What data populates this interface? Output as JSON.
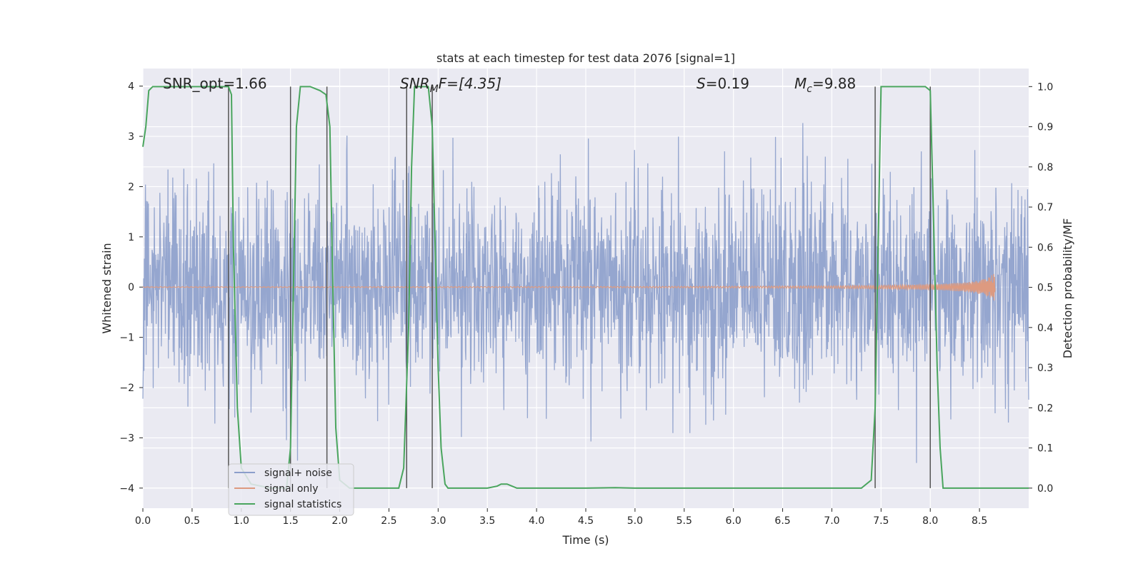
{
  "chart_data": {
    "type": "line",
    "title": "stats at each timestep for test data 2076 [signal=1]",
    "xlabel": "Time (s)",
    "ylabel": "Whitened strain",
    "y2label": "Detection probability/MF",
    "xlim": [
      0,
      9
    ],
    "ylim": [
      -4.4,
      4.35
    ],
    "y2lim": [
      -0.05,
      1.045
    ],
    "x_ticks": [
      0.0,
      0.5,
      1.0,
      1.5,
      2.0,
      2.5,
      3.0,
      3.5,
      4.0,
      4.5,
      5.0,
      5.5,
      6.0,
      6.5,
      7.0,
      7.5,
      8.0,
      8.5
    ],
    "x_tick_labels": [
      "0.0",
      "0.5",
      "1.0",
      "1.5",
      "2.0",
      "2.5",
      "3.0",
      "3.5",
      "4.0",
      "4.5",
      "5.0",
      "5.5",
      "6.0",
      "6.5",
      "7.0",
      "7.5",
      "8.0",
      "8.5"
    ],
    "y_ticks": [
      -4,
      -3,
      -2,
      -1,
      0,
      1,
      2,
      3,
      4
    ],
    "y_tick_labels": [
      "−4",
      "−3",
      "−2",
      "−1",
      "0",
      "1",
      "2",
      "3",
      "4"
    ],
    "y2_ticks": [
      0.0,
      0.1,
      0.2,
      0.3,
      0.4,
      0.5,
      0.6,
      0.7,
      0.8,
      0.9,
      1.0
    ],
    "y2_tick_labels": [
      "0.0",
      "0.1",
      "0.2",
      "0.3",
      "0.4",
      "0.5",
      "0.6",
      "0.7",
      "0.8",
      "0.9",
      "1.0"
    ],
    "grid": true,
    "legend_placement": "lower-left",
    "annotations": {
      "snr_opt": "SNR_opt=1.66",
      "snr_mf_main": "SNR",
      "snr_mf_sub": "M",
      "snr_mf_rest": "F=[4.35]",
      "s_main": "S",
      "s_rest": "=0.19",
      "mc_main": "M",
      "mc_sub": "c",
      "mc_rest": "=9.88"
    },
    "series": [
      {
        "name": "signal+ noise",
        "color": "#8c9ecb",
        "axis": "left",
        "t_range": [
          0,
          9
        ],
        "envelope_sigma": 1.0,
        "peak_abs": 4.0
      },
      {
        "name": "signal only",
        "color": "#dd9a80",
        "axis": "left",
        "t_range": [
          0,
          8.66
        ],
        "amplitude_at_end": 0.3
      },
      {
        "name": "signal statistics",
        "color": "#4aa55e",
        "axis": "right",
        "x": [
          0.0,
          0.03,
          0.06,
          0.1,
          0.2,
          0.4,
          0.6,
          0.8,
          0.87,
          0.9,
          0.92,
          0.96,
          1.0,
          1.1,
          1.3,
          1.46,
          1.5,
          1.53,
          1.56,
          1.6,
          1.7,
          1.8,
          1.86,
          1.9,
          1.93,
          1.96,
          2.0,
          2.1,
          2.3,
          2.5,
          2.6,
          2.65,
          2.7,
          2.73,
          2.76,
          2.8,
          2.9,
          2.94,
          2.97,
          3.0,
          3.03,
          3.07,
          3.1,
          3.2,
          3.5,
          3.6,
          3.64,
          3.7,
          3.75,
          3.8,
          4.0,
          4.5,
          4.8,
          5.0,
          5.5,
          6.0,
          6.5,
          7.0,
          7.3,
          7.4,
          7.44,
          7.47,
          7.5,
          7.6,
          7.8,
          7.95,
          8.0,
          8.03,
          8.07,
          8.1,
          8.13,
          8.2,
          8.5,
          9.0
        ],
        "values": [
          0.85,
          0.9,
          0.99,
          1.0,
          1.0,
          1.0,
          1.0,
          1.0,
          1.0,
          0.98,
          0.6,
          0.2,
          0.05,
          0.01,
          0.0,
          0.0,
          0.1,
          0.5,
          0.9,
          1.0,
          1.0,
          0.99,
          0.98,
          0.9,
          0.5,
          0.15,
          0.02,
          0.0,
          0.0,
          0.0,
          0.0,
          0.05,
          0.4,
          0.8,
          1.0,
          1.0,
          1.0,
          0.9,
          0.6,
          0.3,
          0.1,
          0.01,
          0.0,
          0.0,
          0.0,
          0.005,
          0.01,
          0.01,
          0.005,
          0.0,
          0.0,
          0.0,
          0.001,
          0.0,
          0.0,
          0.0,
          0.0,
          0.0,
          0.0,
          0.02,
          0.2,
          0.6,
          1.0,
          1.0,
          1.0,
          1.0,
          0.99,
          0.7,
          0.3,
          0.1,
          0.0,
          0.0,
          0.0,
          0.0
        ]
      }
    ],
    "vertical_markers": [
      0.87,
      1.5,
      1.87,
      2.68,
      2.94,
      7.44,
      8.0
    ]
  }
}
